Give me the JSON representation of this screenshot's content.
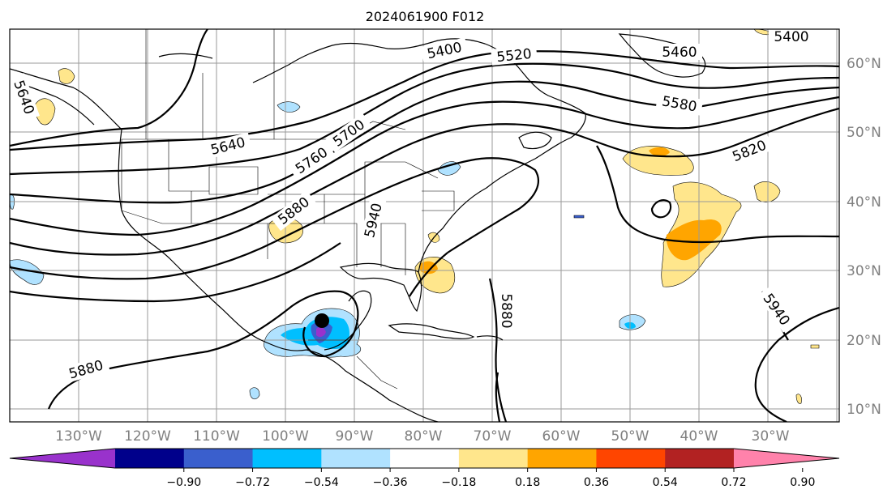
{
  "title": "2024061900 F012",
  "map": {
    "lat_labels": [
      "60°N",
      "50°N",
      "40°N",
      "30°N",
      "20°N",
      "10°N"
    ],
    "lon_labels": [
      "130°W",
      "120°W",
      "110°W",
      "100°W",
      "90°W",
      "80°W",
      "70°W",
      "60°W",
      "50°W",
      "40°W",
      "30°W"
    ],
    "contour_labels": [
      "5400",
      "5400",
      "5520",
      "5460",
      "5580",
      "5640",
      "5640",
      "5700",
      "5760",
      "5820",
      "5880",
      "5940",
      "5880",
      "5940",
      "5880"
    ],
    "line_color": "#000000",
    "grid_color": "#9a9a9a",
    "marker": "storm-center-dot"
  },
  "colorbar": {
    "ticks": [
      "−0.90",
      "−0.72",
      "−0.54",
      "−0.36",
      "−0.18",
      "0.18",
      "0.36",
      "0.54",
      "0.72",
      "0.90"
    ],
    "colors": [
      "#9932cc",
      "#00008b",
      "#3a5fcd",
      "#00bfff",
      "#b0e2ff",
      "#ffffff",
      "#ffe68c",
      "#ffa500",
      "#ff4500",
      "#b22222",
      "#ff82ab"
    ],
    "extend": "both"
  }
}
